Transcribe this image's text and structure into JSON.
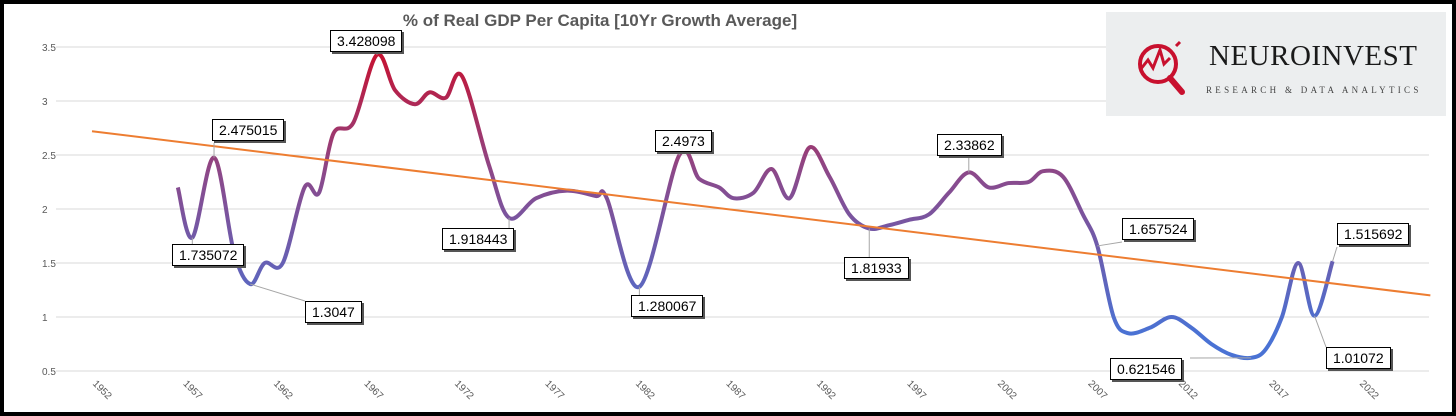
{
  "chart_data": {
    "type": "line",
    "title": "% of Real GDP Per Capita  [10Yr Growth Average]",
    "xlabel": "",
    "ylabel": "",
    "xlim": [
      1952,
      2025.5
    ],
    "ylim": [
      0.5,
      3.5
    ],
    "grid": true,
    "y_ticks": [
      "0.5",
      "1",
      "1.5",
      "2",
      "2.5",
      "3",
      "3.5"
    ],
    "x_ticks": [
      "1952",
      "1957",
      "1962",
      "1967",
      "1972",
      "1977",
      "1982",
      "1987",
      "1992",
      "1997",
      "2002",
      "2007",
      "2012",
      "2017",
      "2022"
    ],
    "series": [
      {
        "name": "10Yr Growth Average",
        "color_top": "#c8102e",
        "color_mid": "#8a4a8c",
        "color_bottom": "#4a72d4",
        "x": [
          1956.3,
          1957.1,
          1958.3,
          1959.4,
          1960.3,
          1961.1,
          1962.1,
          1963.3,
          1964.1,
          1964.9,
          1966.0,
          1967.3,
          1968.3,
          1969.4,
          1970.2,
          1971.1,
          1972.0,
          1973.5,
          1974.6,
          1976.1,
          1977.8,
          1979.4,
          1980.0,
          1981.8,
          1984.0,
          1985.1,
          1986.2,
          1987.0,
          1988.1,
          1989.1,
          1990.1,
          1991.2,
          1992.3,
          1993.4,
          1994.5,
          1995.6,
          1996.7,
          1997.8,
          1998.9,
          2000.0,
          2001.1,
          2002.2,
          2003.3,
          2004.1,
          2005.2,
          2006.3,
          2007.1,
          2008.0,
          2008.8,
          2010.0,
          2011.2,
          2012.3,
          2013.4,
          2014.5,
          2015.6,
          2016.4,
          2017.3,
          2018.2,
          2019.1,
          2020.1
        ],
        "y": [
          2.2,
          1.735,
          2.475,
          1.6,
          1.305,
          1.5,
          1.5,
          2.2,
          2.15,
          2.7,
          2.8,
          3.428,
          3.1,
          2.97,
          3.08,
          3.03,
          3.23,
          2.4,
          1.918,
          2.1,
          2.17,
          2.12,
          2.1,
          1.28,
          2.497,
          2.28,
          2.2,
          2.1,
          2.15,
          2.37,
          2.1,
          2.57,
          2.3,
          1.95,
          1.819,
          1.85,
          1.9,
          1.95,
          2.15,
          2.339,
          2.2,
          2.24,
          2.25,
          2.35,
          2.3,
          1.95,
          1.658,
          1.0,
          0.85,
          0.9,
          1.0,
          0.9,
          0.75,
          0.65,
          0.622,
          0.7,
          1.0,
          1.5,
          1.011,
          1.516
        ]
      }
    ],
    "trendline": {
      "name": "Linear trend",
      "color": "#ed7d31",
      "x": [
        1952,
        2025.5
      ],
      "y": [
        2.72,
        1.2
      ]
    },
    "data_labels": [
      {
        "text": "3.428098",
        "x": 1967.3,
        "y": 3.428
      },
      {
        "text": "2.475015",
        "x": 1958.3,
        "y": 2.475
      },
      {
        "text": "1.735072",
        "x": 1957.1,
        "y": 1.735
      },
      {
        "text": "1.3047",
        "x": 1960.3,
        "y": 1.305
      },
      {
        "text": "1.918443",
        "x": 1974.6,
        "y": 1.918
      },
      {
        "text": "1.280067",
        "x": 1981.8,
        "y": 1.28
      },
      {
        "text": "2.4973",
        "x": 1984.0,
        "y": 2.497
      },
      {
        "text": "1.81933",
        "x": 1994.5,
        "y": 1.819
      },
      {
        "text": "2.33862",
        "x": 2000.0,
        "y": 2.339
      },
      {
        "text": "1.657524",
        "x": 2007.1,
        "y": 1.658
      },
      {
        "text": "0.621546",
        "x": 2015.6,
        "y": 0.622
      },
      {
        "text": "1.515692",
        "x": 2020.1,
        "y": 1.516
      },
      {
        "text": "1.01072",
        "x": 2019.1,
        "y": 1.011
      }
    ]
  },
  "logo": {
    "name": "NEUROINVEST",
    "tagline": "RESEARCH & DATA ANALYTICS"
  }
}
